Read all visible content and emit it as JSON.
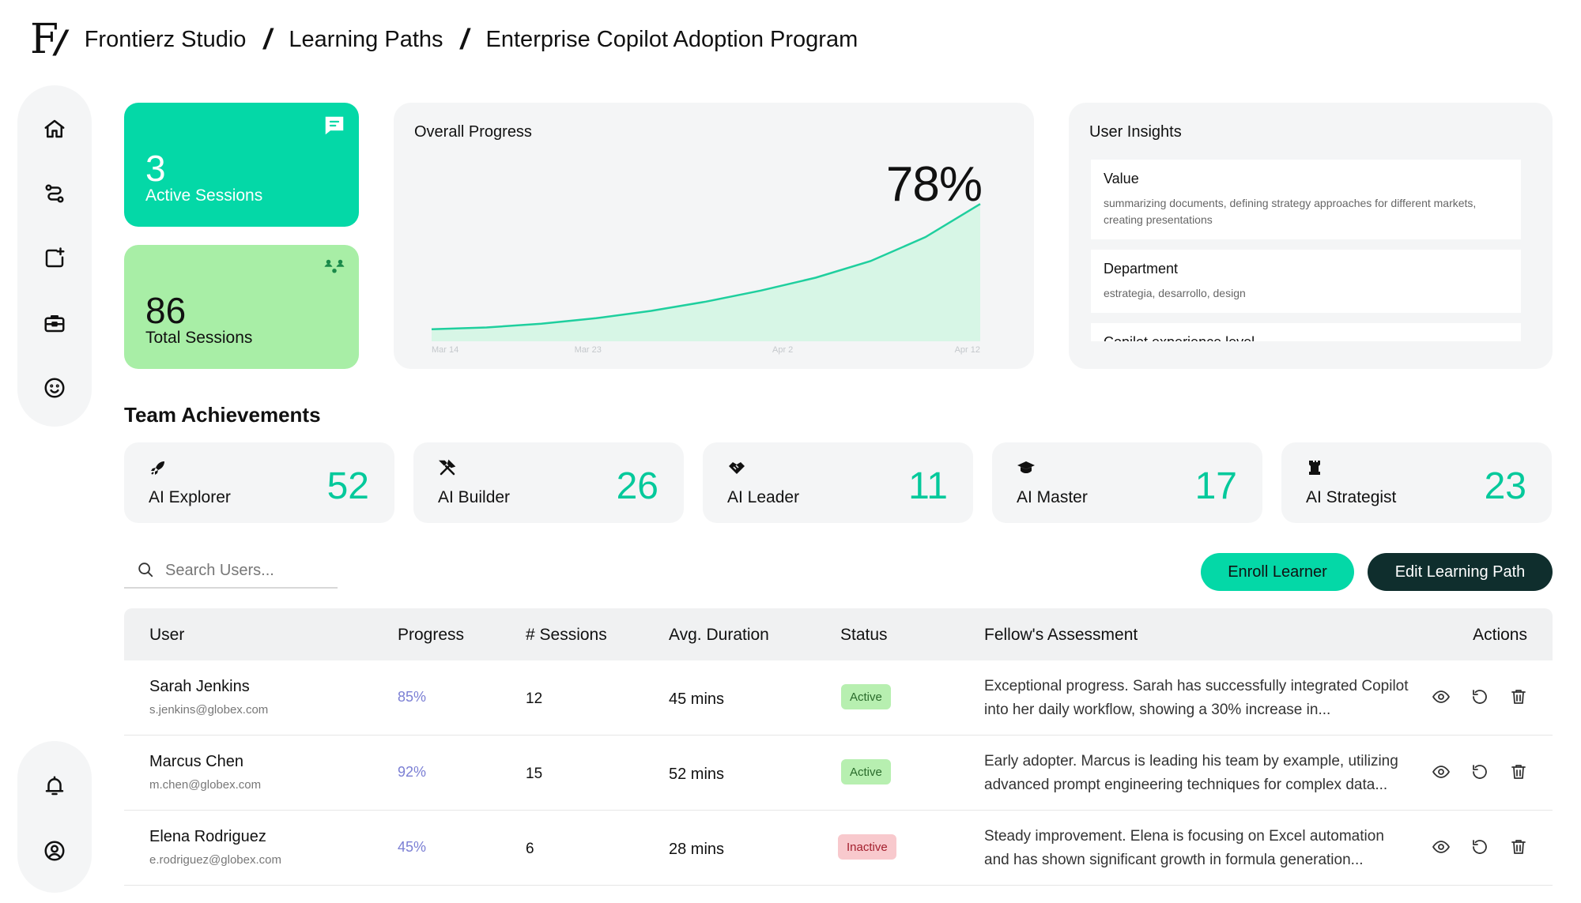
{
  "breadcrumb": {
    "logo_text": "F",
    "items": [
      "Frontierz Studio",
      "Learning Paths",
      "Enterprise Copilot Adoption Program"
    ]
  },
  "sidebar": {
    "top_icons": [
      "home-icon",
      "route-icon",
      "share-icon",
      "briefcase-icon",
      "smile-icon"
    ],
    "bottom_icons": [
      "bell-icon",
      "user-circle-icon"
    ]
  },
  "stats": {
    "active": {
      "value": "3",
      "label": "Active Sessions",
      "icon": "chat-icon"
    },
    "total": {
      "value": "86",
      "label": "Total Sessions",
      "icon": "people-icon"
    }
  },
  "progress": {
    "title": "Overall Progress",
    "percent": "78%"
  },
  "chart_data": {
    "type": "area",
    "title": "Overall Progress",
    "x_ticks": [
      "Mar 14",
      "Mar 23",
      "Apr 2",
      "Apr 12"
    ],
    "x": [
      0,
      0.1,
      0.2,
      0.3,
      0.4,
      0.5,
      0.6,
      0.7,
      0.8,
      0.9,
      1.0
    ],
    "values": [
      10,
      11,
      13,
      16,
      20,
      25,
      31,
      38,
      47,
      60,
      78
    ],
    "ylim": [
      0,
      100
    ],
    "grid": false,
    "colors": {
      "line": "#1fcf9e",
      "fill": "#d7f6e6"
    }
  },
  "insights": {
    "title": "User Insights",
    "items": [
      {
        "label": "Value",
        "value": "summarizing documents, defining strategy approaches for different markets, creating presentations"
      },
      {
        "label": "Department",
        "value": "estrategia, desarrollo, design"
      },
      {
        "label": "Copilot experience level",
        "value": ""
      }
    ]
  },
  "achievements": {
    "title": "Team Achievements",
    "items": [
      {
        "label": "AI Explorer",
        "value": "52",
        "icon": "rocket-icon"
      },
      {
        "label": "AI Builder",
        "value": "26",
        "icon": "tools-icon"
      },
      {
        "label": "AI Leader",
        "value": "11",
        "icon": "handshake-icon"
      },
      {
        "label": "AI Master",
        "value": "17",
        "icon": "graduation-cap-icon"
      },
      {
        "label": "AI Strategist",
        "value": "23",
        "icon": "chess-rook-icon"
      }
    ]
  },
  "search": {
    "placeholder": "Search Users..."
  },
  "buttons": {
    "enroll": "Enroll Learner",
    "edit": "Edit Learning Path"
  },
  "table": {
    "headers": [
      "User",
      "Progress",
      "# Sessions",
      "Avg. Duration",
      "Status",
      "Fellow's Assessment",
      "Actions"
    ],
    "rows": [
      {
        "name": "Sarah Jenkins",
        "email": "s.jenkins@globex.com",
        "progress": "85%",
        "sessions": "12",
        "duration": "45 mins",
        "status": "Active",
        "assessment": "Exceptional progress. Sarah has successfully integrated Copilot into her daily workflow, showing a 30% increase in..."
      },
      {
        "name": "Marcus Chen",
        "email": "m.chen@globex.com",
        "progress": "92%",
        "sessions": "15",
        "duration": "52 mins",
        "status": "Active",
        "assessment": "Early adopter. Marcus is leading his team by example, utilizing advanced prompt engineering techniques for complex data..."
      },
      {
        "name": "Elena Rodriguez",
        "email": "e.rodriguez@globex.com",
        "progress": "45%",
        "sessions": "6",
        "duration": "28 mins",
        "status": "Inactive",
        "assessment": "Steady improvement. Elena is focusing on Excel automation and has shown significant growth in formula generation..."
      }
    ]
  }
}
